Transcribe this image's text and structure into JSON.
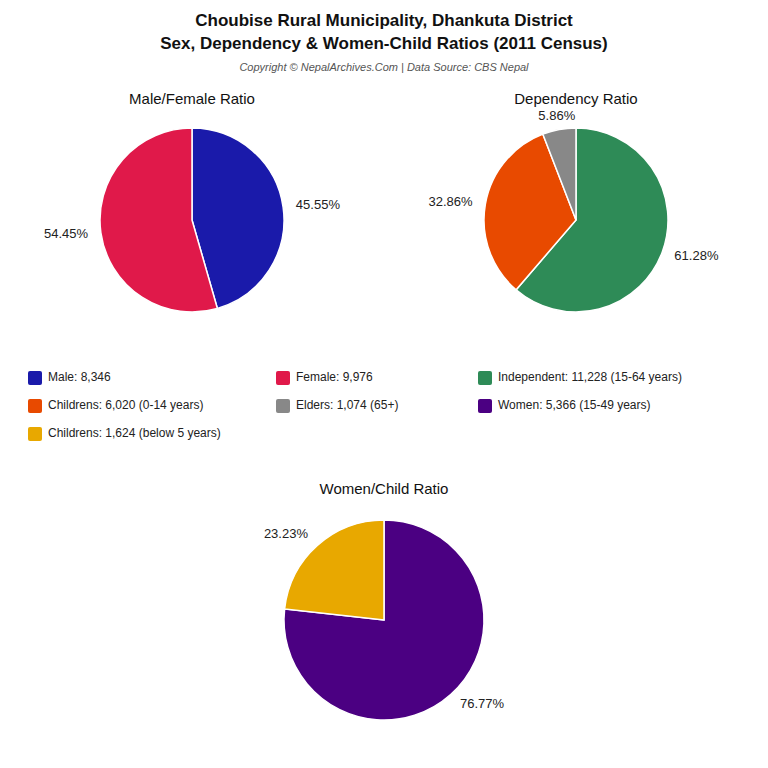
{
  "title": "Choubise Rural Municipality, Dhankuta District",
  "subtitle": "Sex, Dependency & Women-Child Ratios (2011 Census)",
  "annotations": [
    "Copyright © NepalArchives.Com | Data Source: CBS Nepal"
  ],
  "chart_data": [
    {
      "type": "pie",
      "title": "Male/Female Ratio",
      "categories": [
        "Male: 8,346",
        "Female: 9,976"
      ],
      "values": [
        45.55,
        54.45
      ],
      "value_labels": [
        "45.55%",
        "54.45%"
      ],
      "colors": [
        "#1a1aaa",
        "#e0194a"
      ],
      "data_labels": true,
      "legend": "center"
    },
    {
      "type": "pie",
      "title": "Dependency Ratio",
      "categories": [
        "Independent: 11,228 (15-64 years)",
        "Childrens: 6,020 (0-14 years)",
        "Elders: 1,074 (65+)"
      ],
      "values": [
        61.28,
        32.86,
        5.86
      ],
      "value_labels": [
        "61.28%",
        "32.86%",
        "5.86%"
      ],
      "colors": [
        "#2e8b57",
        "#e84a00",
        "#888888"
      ],
      "data_labels": true,
      "legend": "center"
    },
    {
      "type": "pie",
      "title": "Women/Child Ratio",
      "categories": [
        "Women: 5,366 (15-49 years)",
        "Childrens: 1,624 (below 5 years)"
      ],
      "values": [
        76.77,
        23.23
      ],
      "value_labels": [
        "76.77%",
        "23.23%"
      ],
      "colors": [
        "#4b0082",
        "#e8a800"
      ],
      "data_labels": true,
      "legend": "center"
    }
  ]
}
